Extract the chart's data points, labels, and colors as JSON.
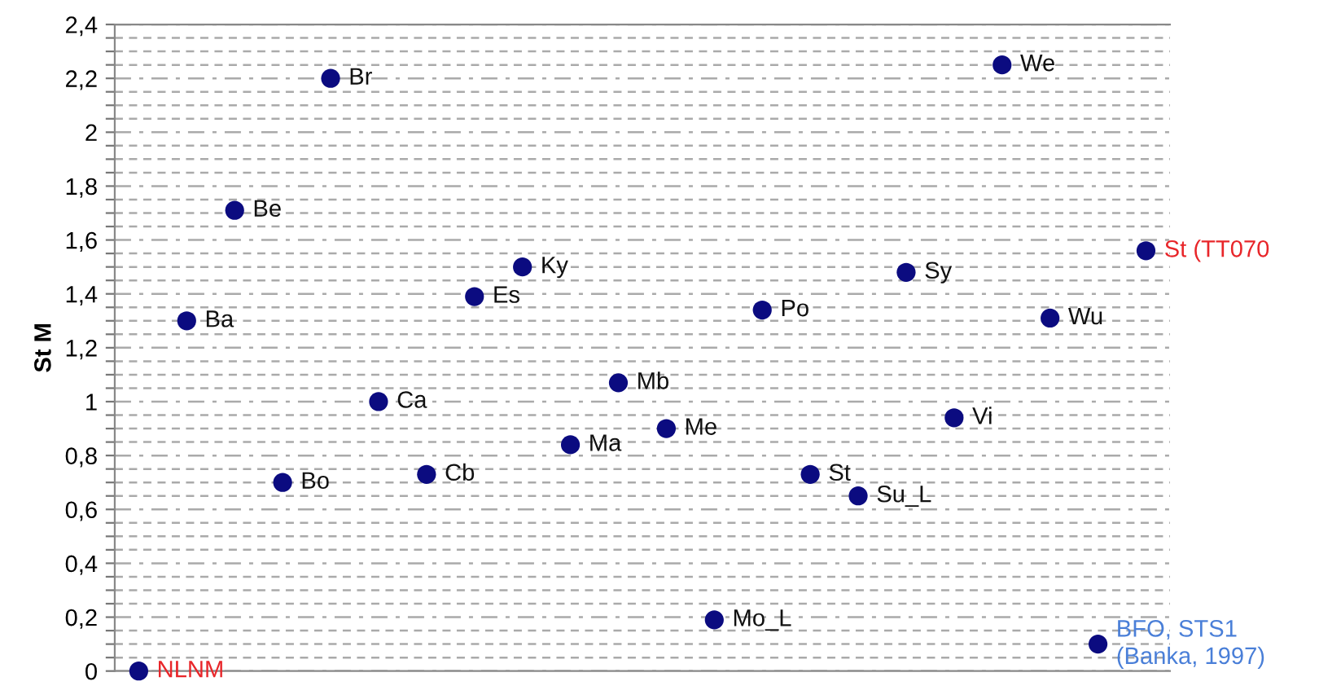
{
  "chart_data": {
    "type": "scatter",
    "ylabel": "St M",
    "categories": [
      null,
      null,
      null,
      null,
      null,
      null,
      null,
      null,
      null,
      null,
      null,
      null,
      null,
      null,
      null,
      null,
      null,
      null,
      null,
      null,
      null,
      null
    ],
    "series": [
      {
        "color": "#0b0b80",
        "values": [
          null,
          1.3,
          1.71,
          0.7,
          2.2,
          1.0,
          0.73,
          1.39,
          1.5,
          0.84,
          1.07,
          0.9,
          0.19,
          1.34,
          0.73,
          0.65,
          1.48,
          0.94,
          2.25,
          1.31,
          null,
          null
        ],
        "value_labels": [
          null,
          "Ba",
          "Be",
          "Bo",
          "Br",
          "Ca",
          "Cb",
          "Es",
          "Ky",
          "Ma",
          "Mb",
          "Me",
          "Mo_L",
          "Po",
          "St",
          "Su_L",
          "Sy",
          "Vi",
          "We",
          "Wu",
          null,
          null
        ]
      },
      {
        "color": "#0b0b80",
        "values": [
          0,
          null,
          null,
          null,
          null,
          null,
          null,
          null,
          null,
          null,
          null,
          null,
          null,
          null,
          null,
          null,
          null,
          null,
          null,
          null,
          null,
          1.56
        ],
        "value_labels": [
          "NLNM",
          null,
          null,
          null,
          null,
          null,
          null,
          null,
          null,
          null,
          null,
          null,
          null,
          null,
          null,
          null,
          null,
          null,
          null,
          null,
          null,
          "St (TT070"
        ]
      },
      {
        "color": "#0b0b80",
        "values": [
          null,
          null,
          null,
          null,
          null,
          null,
          null,
          null,
          null,
          null,
          null,
          null,
          null,
          null,
          null,
          null,
          null,
          null,
          null,
          null,
          0.1,
          null
        ],
        "value_labels": [
          null,
          null,
          null,
          null,
          null,
          null,
          null,
          null,
          null,
          null,
          null,
          null,
          null,
          null,
          null,
          null,
          null,
          null,
          null,
          null,
          "BFO, STS1\n(Banka, 1997)",
          null
        ]
      }
    ],
    "marker": "circle",
    "ylim": [
      0,
      2.4
    ],
    "yticks": [
      {
        "value": 0,
        "label": "0"
      },
      {
        "value": 0.05,
        "label": null
      },
      {
        "value": 0.1,
        "label": null
      },
      {
        "value": 0.15,
        "label": null
      },
      {
        "value": 0.2,
        "label": "0,2"
      },
      {
        "value": 0.25,
        "label": null
      },
      {
        "value": 0.3,
        "label": null
      },
      {
        "value": 0.35,
        "label": null
      },
      {
        "value": 0.4,
        "label": "0,4"
      },
      {
        "value": 0.45,
        "label": null
      },
      {
        "value": 0.5,
        "label": null
      },
      {
        "value": 0.55,
        "label": null
      },
      {
        "value": 0.6,
        "label": "0,6"
      },
      {
        "value": 0.65,
        "label": null
      },
      {
        "value": 0.7,
        "label": null
      },
      {
        "value": 0.75,
        "label": null
      },
      {
        "value": 0.8,
        "label": "0,8"
      },
      {
        "value": 0.85,
        "label": null
      },
      {
        "value": 0.9,
        "label": null
      },
      {
        "value": 0.95,
        "label": null
      },
      {
        "value": 1,
        "label": "1"
      },
      {
        "value": 1.05,
        "label": null
      },
      {
        "value": 1.1,
        "label": null
      },
      {
        "value": 1.15,
        "label": null
      },
      {
        "value": 1.2,
        "label": "1,2"
      },
      {
        "value": 1.25,
        "label": null
      },
      {
        "value": 1.3,
        "label": null
      },
      {
        "value": 1.35,
        "label": null
      },
      {
        "value": 1.4,
        "label": "1,4"
      },
      {
        "value": 1.45,
        "label": null
      },
      {
        "value": 1.5,
        "label": null
      },
      {
        "value": 1.55,
        "label": null
      },
      {
        "value": 1.6,
        "label": "1,6"
      },
      {
        "value": 1.65,
        "label": null
      },
      {
        "value": 1.7,
        "label": null
      },
      {
        "value": 1.75,
        "label": null
      },
      {
        "value": 1.8,
        "label": "1,8"
      },
      {
        "value": 1.85,
        "label": null
      },
      {
        "value": 1.9,
        "label": null
      },
      {
        "value": 1.95,
        "label": null
      },
      {
        "value": 2,
        "label": "2"
      },
      {
        "value": 2.05,
        "label": null
      },
      {
        "value": 2.1,
        "label": null
      },
      {
        "value": 2.15,
        "label": null
      },
      {
        "value": 2.2,
        "label": "2,2"
      },
      {
        "value": 2.25,
        "label": null
      },
      {
        "value": 2.3,
        "label": null
      },
      {
        "value": 2.35,
        "label": null
      },
      {
        "value": 2.4,
        "label": "2,4"
      }
    ],
    "tick_labels": "y",
    "grid": "y",
    "legend": false
  }
}
